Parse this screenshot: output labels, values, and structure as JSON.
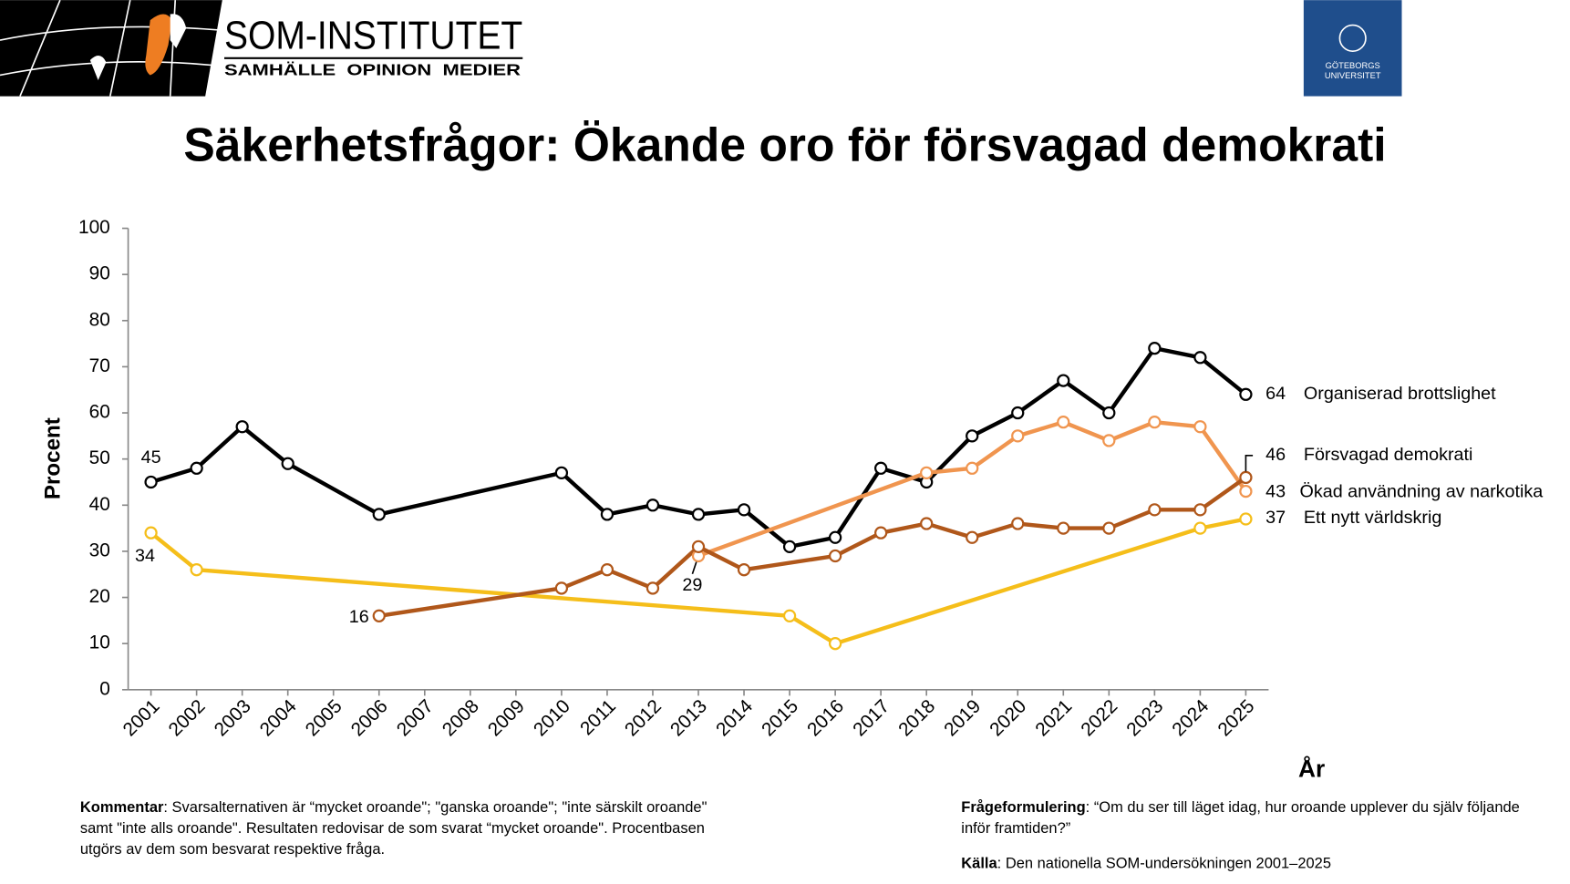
{
  "header": {
    "logo_title": "SOM-INSTITUTET",
    "logo_subtitle": "SAMHÄLLE  OPINION  MEDIER",
    "university_line1": "GÖTEBORGS",
    "university_line2": "UNIVERSITET"
  },
  "chart_data": {
    "type": "line",
    "title": "Säkerhetsfrågor: Ökande oro för försvagad demokrati",
    "ylabel": "Procent",
    "xlabel": "År",
    "xlim": [
      2000.5,
      2025.5
    ],
    "xticks": [
      2001,
      2002,
      2003,
      2004,
      2005,
      2006,
      2007,
      2008,
      2009,
      2010,
      2011,
      2012,
      2013,
      2014,
      2015,
      2016,
      2017,
      2018,
      2019,
      2020,
      2021,
      2022,
      2023,
      2024,
      2025
    ],
    "ylim": [
      0,
      100
    ],
    "yticks": [
      0,
      10,
      20,
      30,
      40,
      50,
      60,
      70,
      80,
      90,
      100
    ],
    "grid": false,
    "series": [
      {
        "name": "Organiserad brottslighet",
        "color": "#000000",
        "x": [
          2001,
          2002,
          2003,
          2004,
          2006,
          2010,
          2011,
          2012,
          2013,
          2014,
          2015,
          2016,
          2017,
          2018,
          2019,
          2020,
          2021,
          2022,
          2023,
          2024,
          2025
        ],
        "values": [
          45,
          48,
          57,
          49,
          38,
          47,
          38,
          40,
          38,
          39,
          31,
          33,
          48,
          45,
          55,
          60,
          67,
          60,
          74,
          72,
          64
        ]
      },
      {
        "name": "Försvagad demokrati",
        "color": "#B0571A",
        "x": [
          2006,
          2010,
          2011,
          2012,
          2013,
          2014,
          2016,
          2017,
          2018,
          2019,
          2020,
          2021,
          2022,
          2023,
          2024,
          2025
        ],
        "values": [
          16,
          22,
          26,
          22,
          31,
          26,
          29,
          34,
          36,
          33,
          36,
          35,
          35,
          39,
          39,
          46
        ]
      },
      {
        "name": "Ökad användning av narkotika",
        "color": "#F0954F",
        "x": [
          2013,
          2018,
          2019,
          2020,
          2021,
          2022,
          2023,
          2024,
          2025
        ],
        "values": [
          29,
          47,
          48,
          55,
          58,
          54,
          58,
          57,
          43
        ]
      },
      {
        "name": "Ett nytt världskrig",
        "color": "#F5BE1A",
        "x": [
          2001,
          2002,
          2015,
          2016,
          2024,
          2025
        ],
        "values": [
          34,
          26,
          16,
          10,
          35,
          37
        ]
      }
    ]
  },
  "notes": {
    "comment_label": "Kommentar",
    "comment_text": ": Svarsalternativen är “mycket oroande\"; \"ganska oroande\"; \"inte särskilt oroande\" samt \"inte alls oroande\". Resultaten redovisar de som svarat “mycket oroande\". Procentbasen utgörs av dem som besvarat respektive fråga.",
    "question_label": "Frågeformulering",
    "question_text": ": “Om du ser till läget idag, hur oroande upplever du själv följande inför framtiden?”",
    "source_label": "Källa",
    "source_text": ": Den nationella SOM-undersökningen 2001–2025"
  }
}
